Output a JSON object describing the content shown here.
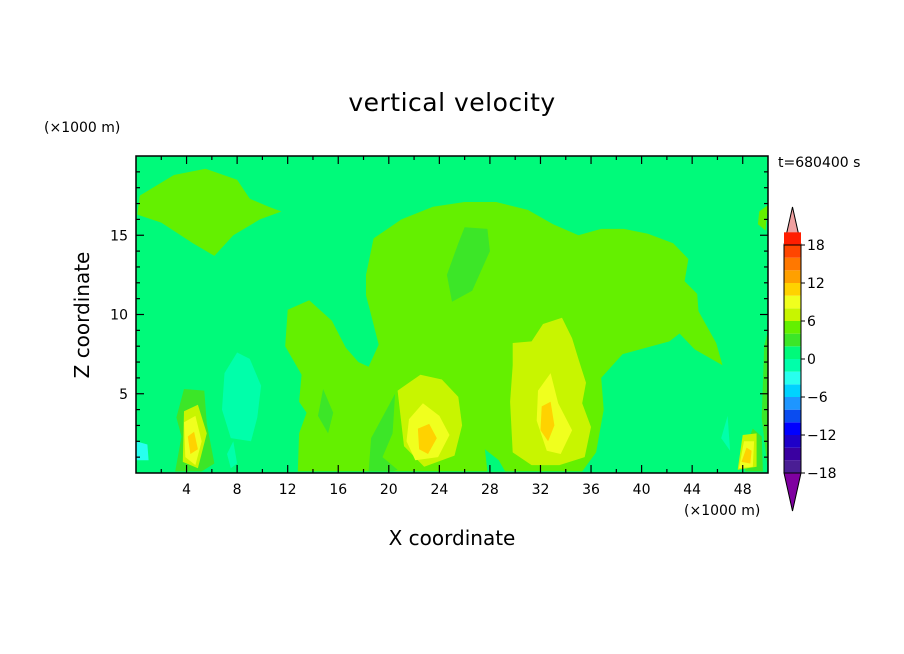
{
  "chart_data": {
    "type": "heatmap",
    "subtype": "filled-contour",
    "title": "vertical velocity",
    "xlabel": "X coordinate",
    "ylabel": "Z coordinate",
    "x_unit": "(×1000 m)",
    "y_unit": "(×1000 m)",
    "time_label": "t=680400 s",
    "xlim": [
      0,
      50
    ],
    "ylim": [
      0,
      20
    ],
    "x_ticks": [
      4,
      8,
      12,
      16,
      20,
      24,
      28,
      32,
      36,
      40,
      44,
      48
    ],
    "y_ticks": [
      5,
      10,
      15
    ],
    "colorbar": {
      "range": [
        -20,
        20
      ],
      "step": 2,
      "labels": [
        18,
        12,
        6,
        0,
        -6,
        -12,
        -18
      ],
      "extend": "both",
      "colors": [
        "#7f00a0",
        "#4a1e94",
        "#3a00a0",
        "#1e00c8",
        "#0000ff",
        "#0a4cf0",
        "#1e96ff",
        "#00d2ff",
        "#28ffee",
        "#00ffaa",
        "#00fa7a",
        "#3ce628",
        "#64f000",
        "#c8f500",
        "#f0ff1e",
        "#ffd200",
        "#ffa000",
        "#ff7800",
        "#ff4600",
        "#ff1e00",
        "#f0a0a0"
      ]
    },
    "regions": [
      {
        "level": 2,
        "points": [
          [
            0.3,
            17.5
          ],
          [
            3,
            18.8
          ],
          [
            5.5,
            19.2
          ],
          [
            8,
            18.5
          ],
          [
            9,
            17.3
          ],
          [
            10.5,
            16.8
          ],
          [
            11.5,
            16.5
          ],
          [
            9.8,
            16
          ],
          [
            7.7,
            15
          ],
          [
            6.2,
            13.7
          ],
          [
            4.5,
            14.5
          ],
          [
            2,
            15.8
          ],
          [
            0.1,
            16.3
          ]
        ]
      },
      {
        "level": 2,
        "points": [
          [
            49.2,
            15.7
          ],
          [
            49.8,
            15.3
          ],
          [
            50,
            16.9
          ],
          [
            49.3,
            16.5
          ]
        ]
      },
      {
        "level": 2,
        "points": [
          [
            18.2,
            12.5
          ],
          [
            18.8,
            14.8
          ],
          [
            21,
            16
          ],
          [
            23.5,
            16.8
          ],
          [
            26,
            17.1
          ],
          [
            28.5,
            17.1
          ],
          [
            31,
            16.6
          ],
          [
            33,
            15.7
          ],
          [
            35,
            15
          ],
          [
            36.8,
            15.4
          ],
          [
            38.6,
            15.4
          ],
          [
            40.5,
            15.1
          ],
          [
            42.5,
            14.5
          ],
          [
            43.7,
            13.5
          ],
          [
            43.4,
            12.1
          ],
          [
            44.4,
            11.3
          ],
          [
            44.5,
            10.2
          ],
          [
            45.9,
            8.2
          ],
          [
            46.4,
            6.8
          ],
          [
            44.2,
            7.8
          ],
          [
            43,
            8.8
          ],
          [
            42.2,
            8.3
          ],
          [
            38.5,
            7.5
          ],
          [
            36.8,
            6
          ],
          [
            37,
            4
          ],
          [
            36.4,
            1.3
          ],
          [
            35.3,
            0.1
          ],
          [
            12.8,
            0.1
          ],
          [
            12.9,
            2.5
          ],
          [
            13.5,
            3.8
          ],
          [
            12.9,
            4.5
          ],
          [
            13.1,
            6.2
          ],
          [
            11.8,
            8
          ],
          [
            12,
            10.3
          ],
          [
            13.7,
            10.9
          ],
          [
            15.5,
            9.6
          ],
          [
            16.6,
            7.9
          ],
          [
            17.6,
            7
          ],
          [
            18.4,
            6.7
          ],
          [
            19.2,
            8.1
          ],
          [
            18.5,
            10.3
          ],
          [
            18.2,
            11.2
          ]
        ]
      },
      {
        "level": 1,
        "points": [
          [
            26,
            15.5
          ],
          [
            27.8,
            15.4
          ],
          [
            28,
            14
          ],
          [
            26.6,
            11.5
          ],
          [
            25,
            10.8
          ],
          [
            24.6,
            12.5
          ],
          [
            25.5,
            14.5
          ]
        ]
      },
      {
        "level": 1,
        "points": [
          [
            20.5,
            5
          ],
          [
            20.3,
            2.5
          ],
          [
            19.5,
            1
          ],
          [
            20.7,
            0.2
          ],
          [
            20.3,
            0.1
          ],
          [
            18.4,
            0.1
          ],
          [
            18.6,
            2.2
          ]
        ]
      },
      {
        "level": 1,
        "points": [
          [
            14.8,
            5.3
          ],
          [
            15.6,
            3.8
          ],
          [
            15.2,
            2.5
          ],
          [
            14.4,
            3.6
          ]
        ]
      },
      {
        "level": 1,
        "points": [
          [
            3.8,
            5.3
          ],
          [
            5.4,
            5.2
          ],
          [
            5.6,
            3.1
          ],
          [
            6.2,
            0.6
          ],
          [
            5.2,
            0.1
          ],
          [
            3.1,
            0.1
          ],
          [
            3.6,
            2.3
          ],
          [
            3.2,
            3.5
          ]
        ]
      },
      {
        "level": 1,
        "points": [
          [
            48.2,
            0.1
          ],
          [
            48.3,
            1.8
          ],
          [
            48.8,
            2.8
          ],
          [
            49.5,
            2.3
          ],
          [
            49.6,
            0.1
          ]
        ]
      },
      {
        "level": 1,
        "points": [
          [
            49.7,
            8
          ],
          [
            50,
            9
          ],
          [
            50,
            0.1
          ],
          [
            49.5,
            3.5
          ]
        ]
      },
      {
        "level": 0,
        "points": [
          [
            0,
            8.5
          ],
          [
            0.8,
            7
          ],
          [
            2,
            4.5
          ],
          [
            1.4,
            2
          ],
          [
            0.8,
            0.1
          ],
          [
            0,
            0.1
          ]
        ]
      },
      {
        "level": 0,
        "points": [
          [
            5.7,
            7
          ],
          [
            6.5,
            8.7
          ],
          [
            7.5,
            9.8
          ],
          [
            9,
            9
          ],
          [
            10.5,
            8.1
          ],
          [
            11.4,
            6.2
          ],
          [
            10.4,
            4.5
          ],
          [
            10.5,
            1.7
          ],
          [
            10,
            0.1
          ],
          [
            6.3,
            0.1
          ],
          [
            6.4,
            2.7
          ],
          [
            5.8,
            4.3
          ]
        ]
      },
      {
        "level": 0,
        "points": [
          [
            45,
            4.8
          ],
          [
            46.2,
            3.7
          ],
          [
            46.4,
            1.7
          ],
          [
            45.9,
            0.1
          ],
          [
            43.6,
            0.1
          ],
          [
            44.3,
            2.2
          ]
        ]
      },
      {
        "level": 0,
        "points": [
          [
            27.6,
            1.5
          ],
          [
            28.7,
            0.8
          ],
          [
            29.2,
            0.1
          ],
          [
            27.8,
            0.1
          ]
        ]
      },
      {
        "level": -1,
        "points": [
          [
            7,
            6.3
          ],
          [
            8,
            7.6
          ],
          [
            9,
            7.2
          ],
          [
            9.9,
            5.5
          ],
          [
            9.6,
            3.5
          ],
          [
            9.1,
            2
          ],
          [
            7.5,
            2.2
          ],
          [
            6.8,
            4
          ]
        ]
      },
      {
        "level": -1,
        "points": [
          [
            7.7,
            2
          ],
          [
            8,
            0.6
          ],
          [
            7.5,
            0.3
          ],
          [
            7.2,
            1.2
          ]
        ]
      },
      {
        "level": -1,
        "points": [
          [
            46.3,
            2.2
          ],
          [
            46.8,
            3.6
          ],
          [
            47,
            1.4
          ]
        ]
      },
      {
        "level": -2,
        "points": [
          [
            0,
            2
          ],
          [
            0.9,
            1.8
          ],
          [
            1,
            0.8
          ],
          [
            0,
            0.8
          ]
        ]
      },
      {
        "level": 3,
        "points": [
          [
            20.7,
            5.2
          ],
          [
            22.5,
            6.2
          ],
          [
            24.2,
            5.9
          ],
          [
            25.5,
            4.8
          ],
          [
            25.8,
            3
          ],
          [
            25.2,
            1.1
          ],
          [
            22.8,
            0.4
          ],
          [
            21.2,
            1.7
          ]
        ]
      },
      {
        "level": 3,
        "points": [
          [
            29.8,
            8.2
          ],
          [
            31.3,
            8.3
          ],
          [
            32.2,
            9.4
          ],
          [
            33.7,
            9.8
          ],
          [
            34.5,
            8.5
          ],
          [
            35,
            7.2
          ],
          [
            35.6,
            5.7
          ],
          [
            35.3,
            4.4
          ],
          [
            36,
            2.9
          ],
          [
            35.5,
            1
          ],
          [
            33.5,
            0.5
          ],
          [
            31.3,
            0.5
          ],
          [
            29.8,
            1.3
          ],
          [
            29.6,
            4.5
          ],
          [
            29.8,
            6.8
          ]
        ]
      },
      {
        "level": 3,
        "points": [
          [
            3.8,
            3.9
          ],
          [
            4.9,
            4.3
          ],
          [
            5.6,
            2.5
          ],
          [
            4.9,
            0.3
          ],
          [
            3.7,
            0.7
          ]
        ]
      },
      {
        "level": 3,
        "points": [
          [
            47.6,
            0.2
          ],
          [
            48,
            2.4
          ],
          [
            49.1,
            2.5
          ],
          [
            49.1,
            0.4
          ]
        ]
      },
      {
        "level": 4,
        "points": [
          [
            21.6,
            3.4
          ],
          [
            22.7,
            4.4
          ],
          [
            24,
            3.6
          ],
          [
            24.8,
            2.4
          ],
          [
            23.9,
            1
          ],
          [
            22.1,
            0.8
          ],
          [
            21.4,
            2
          ]
        ]
      },
      {
        "level": 4,
        "points": [
          [
            31.8,
            5.2
          ],
          [
            32.8,
            6.3
          ],
          [
            33.4,
            4.4
          ],
          [
            34.5,
            2.7
          ],
          [
            33.6,
            1.2
          ],
          [
            32.5,
            1.4
          ],
          [
            31.7,
            3.3
          ]
        ]
      },
      {
        "level": 4,
        "points": [
          [
            3.8,
            3.2
          ],
          [
            4.7,
            3.6
          ],
          [
            5.2,
            2
          ],
          [
            4.7,
            0.5
          ],
          [
            3.9,
            1
          ]
        ]
      },
      {
        "level": 4,
        "points": [
          [
            47.7,
            0.3
          ],
          [
            48.1,
            2
          ],
          [
            48.9,
            2
          ],
          [
            48.8,
            0.4
          ]
        ]
      },
      {
        "level": 5,
        "points": [
          [
            22.3,
            2.8
          ],
          [
            23.2,
            3.1
          ],
          [
            23.8,
            2.2
          ],
          [
            23.1,
            1.2
          ],
          [
            22.4,
            1.5
          ]
        ]
      },
      {
        "level": 5,
        "points": [
          [
            32.1,
            4.2
          ],
          [
            32.8,
            4.5
          ],
          [
            33.1,
            3
          ],
          [
            32.6,
            2
          ],
          [
            32,
            2.7
          ]
        ]
      },
      {
        "level": 5,
        "points": [
          [
            4.1,
            2.3
          ],
          [
            4.6,
            2.6
          ],
          [
            4.9,
            1.5
          ],
          [
            4.3,
            1.2
          ]
        ]
      },
      {
        "level": 5,
        "points": [
          [
            47.9,
            0.7
          ],
          [
            48.3,
            1.6
          ],
          [
            48.7,
            1.4
          ],
          [
            48.6,
            0.6
          ]
        ]
      },
      {
        "level": 2,
        "points": [
          [
            14.1,
            8.2
          ],
          [
            14.5,
            8.4
          ],
          [
            14.5,
            7.5
          ],
          [
            14.1,
            7.6
          ]
        ]
      }
    ]
  }
}
